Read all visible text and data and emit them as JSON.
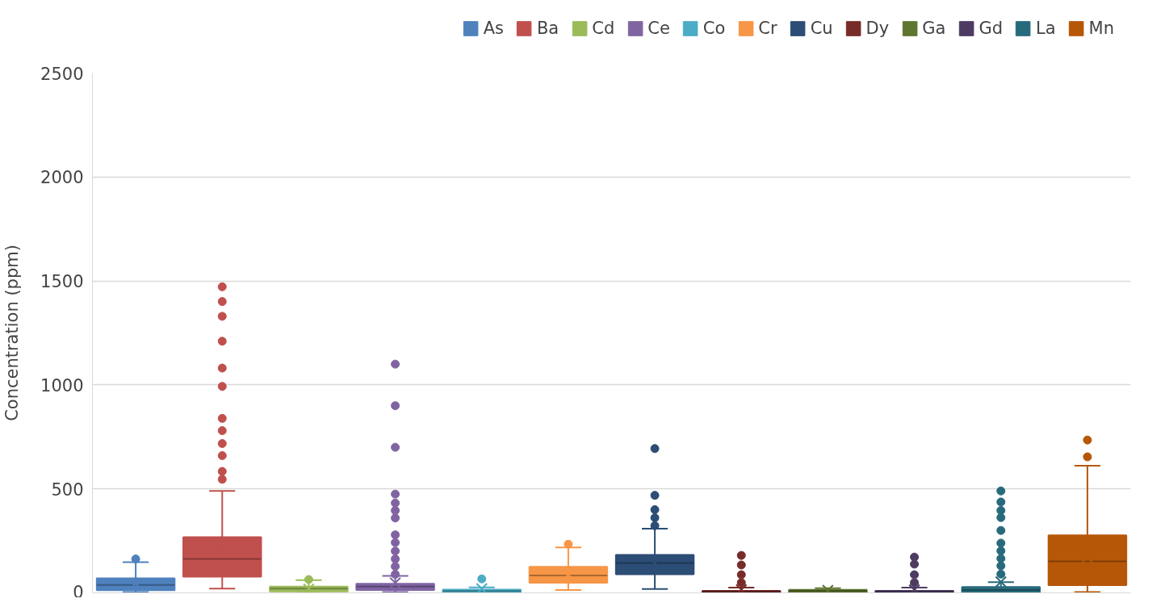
{
  "chart_data": {
    "type": "box",
    "ylabel": "Concentration (ppm)",
    "categories": [
      null,
      null,
      null,
      null,
      null,
      null,
      null,
      null,
      null,
      null,
      null,
      null
    ],
    "ylim": [
      0,
      2500
    ],
    "yticks": [
      0,
      500,
      1000,
      1500,
      2000,
      2500
    ],
    "grid": "y",
    "legend": "top right",
    "tick_labels": "y",
    "series": [
      {
        "name": "As",
        "color": "#4f81bd",
        "boxes": [
          {
            "low": 4,
            "q1": 13,
            "median": 38,
            "q3": 70,
            "high": 148,
            "mean": 45,
            "outliers": [
              163
            ]
          },
          null,
          null,
          null,
          null,
          null,
          null,
          null,
          null,
          null,
          null,
          null
        ]
      },
      {
        "name": "Ba",
        "color": "#c0504d",
        "boxes": [
          null,
          {
            "low": 20,
            "q1": 78,
            "median": 163,
            "q3": 268,
            "high": 490,
            "mean": 207,
            "outliers": [
              1472,
              1401,
              1330,
              1210,
              1081,
              993,
              839,
              780,
              718,
              660,
              584,
              546
            ]
          },
          null,
          null,
          null,
          null,
          null,
          null,
          null,
          null,
          null,
          null
        ]
      },
      {
        "name": "Cd",
        "color": "#9bbb59",
        "boxes": [
          null,
          null,
          {
            "low": 0,
            "q1": 7,
            "median": 20,
            "q3": 30,
            "high": 61,
            "mean": 18,
            "outliers": [
              64
            ]
          },
          null,
          null,
          null,
          null,
          null,
          null,
          null,
          null,
          null
        ]
      },
      {
        "name": "Ce",
        "color": "#8064a2",
        "boxes": [
          null,
          null,
          null,
          {
            "low": 4,
            "q1": 14,
            "median": 30,
            "q3": 44,
            "high": 82,
            "mean": 48,
            "outliers": [
              1100,
              900,
              700,
              475,
              432,
              396,
              360,
              279,
              242,
              201,
              163,
              127,
              89
            ]
          },
          null,
          null,
          null,
          null,
          null,
          null,
          null,
          null
        ]
      },
      {
        "name": "Co",
        "color": "#4bacc6",
        "boxes": [
          null,
          null,
          null,
          null,
          {
            "low": 0,
            "q1": 3,
            "median": 9,
            "q3": 16,
            "high": 26,
            "mean": 20,
            "outliers": [
              67
            ]
          },
          null,
          null,
          null,
          null,
          null,
          null,
          null
        ]
      },
      {
        "name": "Cr",
        "color": "#f79646",
        "boxes": [
          null,
          null,
          null,
          null,
          null,
          {
            "low": 14,
            "q1": 49,
            "median": 83,
            "q3": 125,
            "high": 218,
            "mean": 88,
            "outliers": [
              234
            ]
          },
          null,
          null,
          null,
          null,
          null,
          null
        ]
      },
      {
        "name": "Cu",
        "color": "#2c4d75",
        "boxes": [
          null,
          null,
          null,
          null,
          null,
          null,
          {
            "low": 18,
            "q1": 89,
            "median": 144,
            "q3": 182,
            "high": 309,
            "mean": 144,
            "outliers": [
              694,
              469,
              400,
              361,
              323
            ]
          },
          null,
          null,
          null,
          null,
          null
        ]
      },
      {
        "name": "Dy",
        "color": "#772c2a",
        "boxes": [
          null,
          null,
          null,
          null,
          null,
          null,
          null,
          {
            "low": 0,
            "q1": 2,
            "median": 6,
            "q3": 10,
            "high": 25,
            "mean": 15,
            "outliers": [
              180,
              134,
              87,
              49
            ]
          },
          null,
          null,
          null,
          null
        ]
      },
      {
        "name": "Ga",
        "color": "#5f7530",
        "boxes": [
          null,
          null,
          null,
          null,
          null,
          null,
          null,
          null,
          {
            "low": 0,
            "q1": 2,
            "median": 10,
            "q3": 15,
            "high": 22,
            "mean": 12
          },
          null,
          null,
          null
        ]
      },
      {
        "name": "Gd",
        "color": "#4d3b62",
        "boxes": [
          null,
          null,
          null,
          null,
          null,
          null,
          null,
          null,
          null,
          {
            "low": 0,
            "q1": 2,
            "median": 5,
            "q3": 10,
            "high": 25,
            "mean": 14,
            "outliers": [
              172,
              138,
              87,
              49
            ]
          },
          null,
          null
        ]
      },
      {
        "name": "La",
        "color": "#276a7c",
        "boxes": [
          null,
          null,
          null,
          null,
          null,
          null,
          null,
          null,
          null,
          null,
          {
            "low": 0,
            "q1": 3,
            "median": 14,
            "q3": 28,
            "high": 51,
            "mean": 53,
            "outliers": [
              490,
              437,
              396,
              362,
              300,
              239,
              202,
              165,
              130,
              90
            ]
          },
          null
        ]
      },
      {
        "name": "Mn",
        "color": "#b65708",
        "boxes": [
          null,
          null,
          null,
          null,
          null,
          null,
          null,
          null,
          null,
          null,
          null,
          {
            "low": 4,
            "q1": 37,
            "median": 151,
            "q3": 277,
            "high": 611,
            "mean": 170,
            "outliers": [
              735,
              654
            ]
          }
        ]
      }
    ]
  }
}
